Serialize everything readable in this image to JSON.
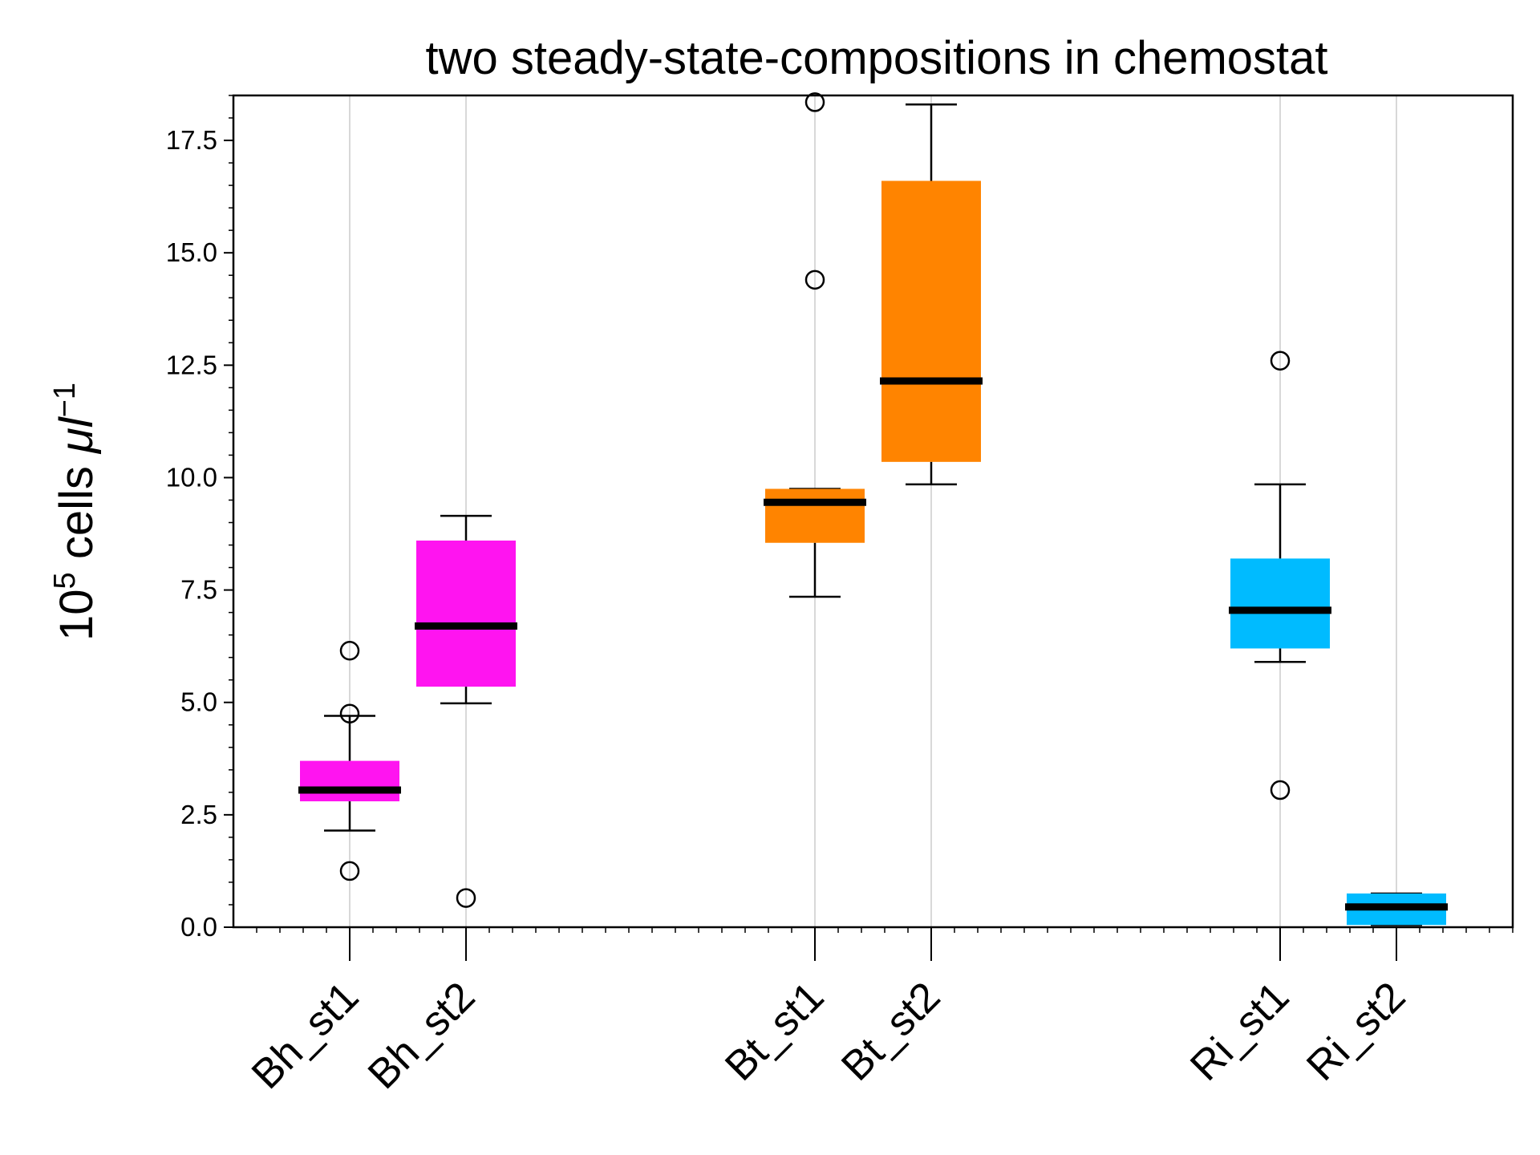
{
  "chart_data": {
    "type": "box",
    "title": "two steady-state-compositions in chemostat",
    "ylabel_prefix": "10",
    "ylabel_exp": "5",
    "ylabel_mid": " cells ",
    "ylabel_unit": "μl",
    "ylabel_unit_exp": "−1",
    "xlabel": "",
    "ylim": [
      0,
      18.5
    ],
    "yticks": [
      0.0,
      2.5,
      5.0,
      7.5,
      10.0,
      12.5,
      15.0,
      17.5
    ],
    "ytick_labels": [
      "0.0",
      "2.5",
      "5.0",
      "7.5",
      "10.0",
      "12.5",
      "15.0",
      "17.5"
    ],
    "grid": "vertical",
    "categories": [
      "Bh_st1",
      "Bh_st2",
      "Bt_st1",
      "Bt_st2",
      "Ri_st1",
      "Ri_st2"
    ],
    "positions": [
      1,
      2,
      5,
      6,
      9,
      10
    ],
    "xlim": [
      0,
      11
    ],
    "boxes": [
      {
        "label": "Bh_st1",
        "color": "#ff14f0",
        "whislo": 2.15,
        "q1": 2.8,
        "median": 3.05,
        "q3": 3.7,
        "whishi": 4.7,
        "fliers": [
          1.25,
          4.75,
          6.15
        ]
      },
      {
        "label": "Bh_st2",
        "color": "#ff14f0",
        "whislo": 4.98,
        "q1": 5.35,
        "median": 6.7,
        "q3": 8.6,
        "whishi": 9.15,
        "fliers": [
          0.65
        ]
      },
      {
        "label": "Bt_st1",
        "color": "#ff8400",
        "whislo": 7.35,
        "q1": 8.55,
        "median": 9.45,
        "q3": 9.75,
        "whishi": 9.75,
        "fliers": [
          14.4,
          18.35
        ]
      },
      {
        "label": "Bt_st2",
        "color": "#ff8400",
        "whislo": 9.85,
        "q1": 10.35,
        "median": 12.15,
        "q3": 16.6,
        "whishi": 18.3,
        "fliers": []
      },
      {
        "label": "Ri_st1",
        "color": "#00bbff",
        "whislo": 5.9,
        "q1": 6.2,
        "median": 7.05,
        "q3": 8.2,
        "whishi": 9.85,
        "fliers": [
          3.05,
          12.6
        ]
      },
      {
        "label": "Ri_st2",
        "color": "#00bbff",
        "whislo": 0.05,
        "q1": 0.05,
        "median": 0.45,
        "q3": 0.75,
        "whishi": 0.75,
        "fliers": []
      }
    ]
  }
}
